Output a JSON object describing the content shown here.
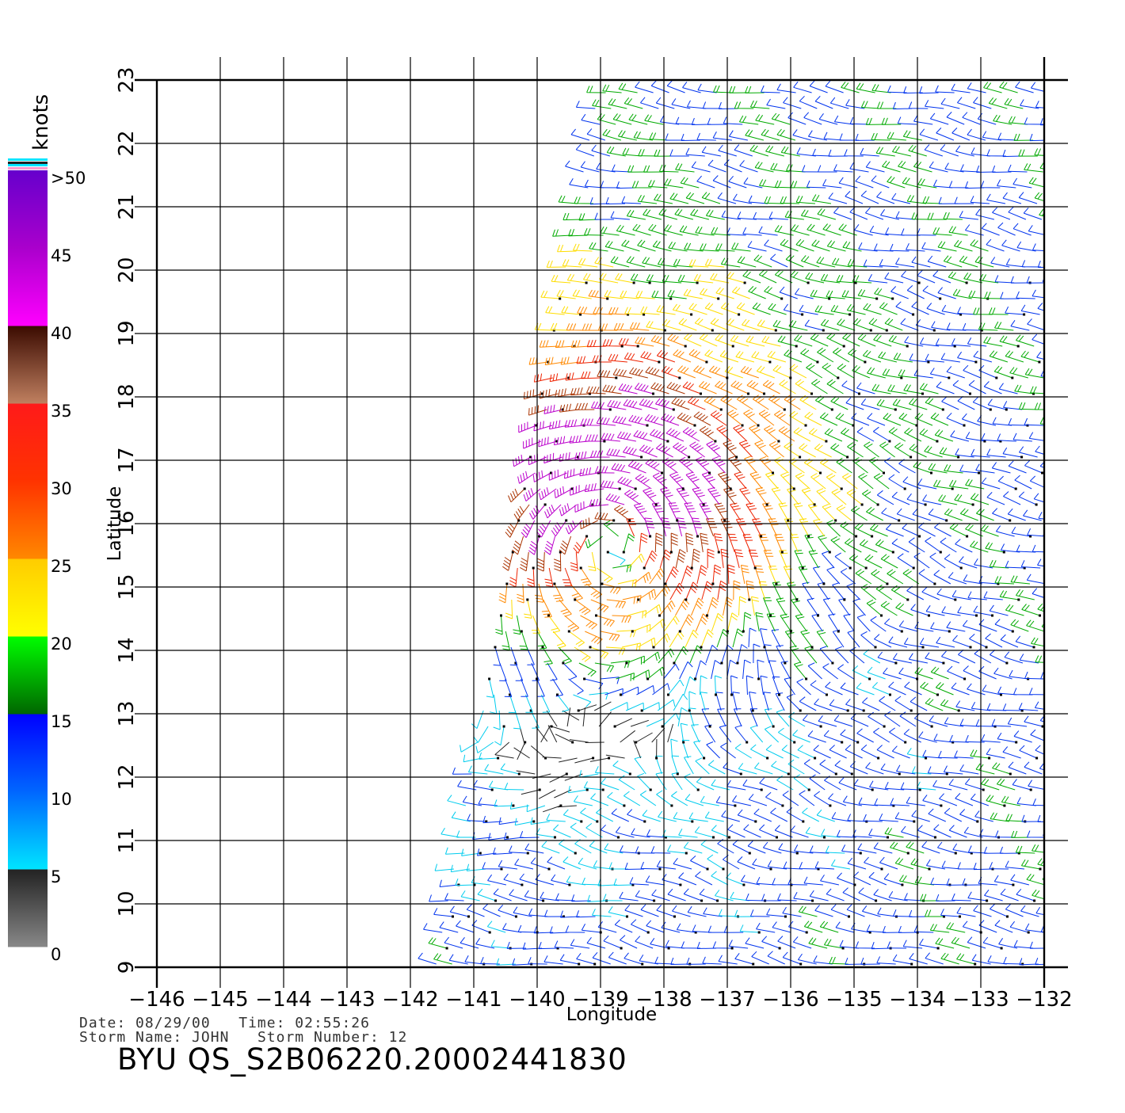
{
  "map": {
    "x_axis_label": "Longitude",
    "y_axis_label": "Latitude",
    "lon_ticks": [
      "−146",
      "−145",
      "−144",
      "−143",
      "−142",
      "−141",
      "−140",
      "−139",
      "−138",
      "−137",
      "−136",
      "−135",
      "−134",
      "−133",
      "−132"
    ],
    "lat_ticks": [
      "9",
      "10",
      "11",
      "12",
      "13",
      "14",
      "15",
      "16",
      "17",
      "18",
      "19",
      "20",
      "21",
      "22",
      "23"
    ],
    "lon_range": [
      -146,
      -132
    ],
    "lat_range": [
      9,
      23
    ],
    "grid": true,
    "swath_lon_west_edge": {
      "lat_9": -141.6,
      "lat_23": -139.0
    },
    "storm_center": {
      "lon": -138.8,
      "lat": 15.8
    },
    "background_flow_direction": "easterly trade winds",
    "colors": {
      "axis": "#000000",
      "grid": "#000000",
      "land": "#ffffff"
    }
  },
  "colorbar": {
    "unit_label": "knots",
    "labels": [
      ">50",
      "45",
      "40",
      "35",
      "30",
      "25",
      "20",
      "15",
      "10",
      "5",
      "0"
    ],
    "stops": [
      {
        "knots": 0,
        "color": "#888888"
      },
      {
        "knots": 5,
        "color": "#222222"
      },
      {
        "knots": 5,
        "color": "#00e5ff"
      },
      {
        "knots": 10,
        "color": "#0066ff"
      },
      {
        "knots": 15,
        "color": "#0000ff"
      },
      {
        "knots": 15,
        "color": "#006600"
      },
      {
        "knots": 20,
        "color": "#00ff00"
      },
      {
        "knots": 20,
        "color": "#ffff00"
      },
      {
        "knots": 25,
        "color": "#ffcc00"
      },
      {
        "knots": 25,
        "color": "#ff8800"
      },
      {
        "knots": 30,
        "color": "#ff3300"
      },
      {
        "knots": 35,
        "color": "#ff1a1a"
      },
      {
        "knots": 35,
        "color": "#c08060"
      },
      {
        "knots": 40,
        "color": "#3a0a00"
      },
      {
        "knots": 40,
        "color": "#ff00ff"
      },
      {
        "knots": 45,
        "color": "#aa00cc"
      },
      {
        "knots": 50,
        "color": "#6600cc"
      }
    ]
  },
  "footer": {
    "date_label": "Date:",
    "date_value": "08/29/00",
    "time_label": "Time:",
    "time_value": "02:55:26",
    "storm_name_label": "Storm Name:",
    "storm_name_value": "JOHN",
    "storm_number_label": "Storm Number:",
    "storm_number_value": "12",
    "product_id": "BYU QS_S2B06220.20002441830"
  }
}
